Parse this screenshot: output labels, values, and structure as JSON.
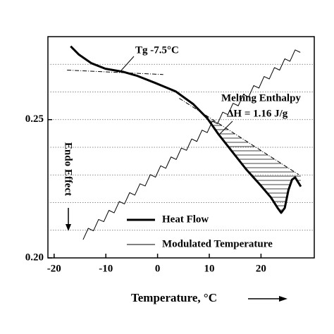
{
  "chart_data": {
    "type": "line",
    "x_label": "Temperature, °C",
    "annotations": {
      "tg": "Tg -7.5°C",
      "melting": "Melting Enthalpy",
      "enthalpy": "ΔH = 1.16 J/g",
      "endo": "Endo Effect"
    },
    "xlim": [
      -21.2,
      30.3
    ],
    "ylim": [
      0.2,
      0.28
    ],
    "xticks": [
      -20,
      -10,
      0,
      10,
      20
    ],
    "yticks": [
      {
        "value": 0.2,
        "label": "0.20"
      },
      0.25
    ],
    "ygrid": [
      0.21,
      0.22,
      0.23,
      0.24,
      0.25,
      0.26,
      0.27
    ],
    "series": [
      {
        "name": "Heat Flow",
        "color": "#000000",
        "x": [
          -16.8,
          -15.2,
          -12.8,
          -10.1,
          -6.7,
          -3.9,
          -0.5,
          3.5,
          6.9,
          9.6,
          11.7,
          14.4,
          17.1,
          19.8,
          21.9,
          23.2,
          23.9,
          24.6,
          25.3,
          26.0,
          26.6,
          27.7
        ],
        "values": [
          0.2765,
          0.2735,
          0.2704,
          0.2684,
          0.2673,
          0.2658,
          0.2633,
          0.2602,
          0.2556,
          0.2505,
          0.2449,
          0.2385,
          0.2321,
          0.2265,
          0.2219,
          0.2181,
          0.2163,
          0.2181,
          0.2245,
          0.2283,
          0.2291,
          0.2258
        ]
      },
      {
        "name": "Modulated Temperature",
        "color": "#000000",
        "x": [
          -14.4,
          -13.4,
          -12.4,
          -11.4,
          -10.4,
          -9.4,
          -8.4,
          -7.4,
          -6.4,
          -5.4,
          -4.4,
          -3.4,
          -2.4,
          -1.4,
          -0.4,
          0.6,
          1.6,
          2.6,
          3.6,
          4.6,
          5.6,
          6.6,
          7.6,
          8.6,
          9.6,
          10.6,
          11.6,
          12.6,
          13.6,
          14.6,
          15.6,
          16.6,
          17.6,
          18.6,
          19.6,
          20.6,
          21.6,
          22.6,
          23.6,
          24.6,
          25.6,
          26.6,
          27.6
        ],
        "values": [
          0.2066,
          0.2107,
          0.2098,
          0.2139,
          0.2131,
          0.2172,
          0.2163,
          0.2204,
          0.2195,
          0.2236,
          0.2227,
          0.2268,
          0.226,
          0.2301,
          0.2292,
          0.2333,
          0.2324,
          0.2365,
          0.2356,
          0.2397,
          0.2389,
          0.243,
          0.2421,
          0.2462,
          0.2453,
          0.2494,
          0.2485,
          0.2527,
          0.2518,
          0.2559,
          0.255,
          0.2591,
          0.2582,
          0.2623,
          0.2614,
          0.2656,
          0.2647,
          0.2688,
          0.2679,
          0.272,
          0.2711,
          0.2752,
          0.2743
        ]
      }
    ],
    "baselines": [
      {
        "x": [
          -17.5,
          1.1
        ],
        "values": [
          0.2679,
          0.2663
        ]
      },
      {
        "x": [
          4.2,
          27.3
        ],
        "values": [
          0.2577,
          0.2301
        ]
      }
    ]
  }
}
